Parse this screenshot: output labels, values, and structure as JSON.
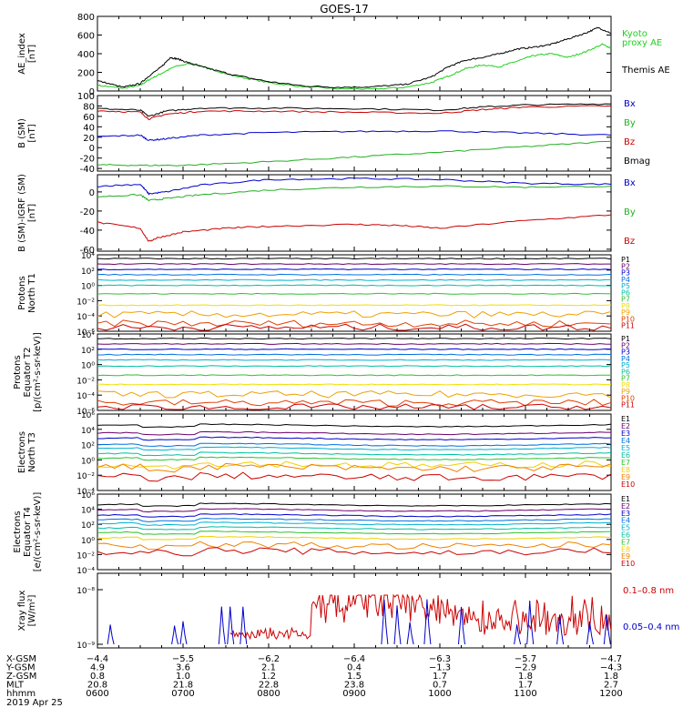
{
  "chart_data": {
    "type": "line",
    "title": "GOES-17",
    "x_range_hours": [
      6,
      12
    ],
    "panels": [
      {
        "id": "ae",
        "ylabel": "AE_index\n[nT]",
        "ylim": [
          0,
          800
        ],
        "yticks": [
          0,
          200,
          400,
          600,
          800
        ],
        "legend": [
          {
            "text": "Kyoto",
            "color": "#20d020"
          },
          {
            "text": "proxy AE",
            "color": "#20d020"
          },
          {
            "text": "Themis AE",
            "color": "#000000"
          }
        ],
        "series": [
          {
            "name": "Kyoto proxy AE",
            "color": "#20d020",
            "x": [
              6.0,
              6.3,
              6.5,
              6.6,
              6.75,
              6.9,
              7.1,
              7.3,
              7.6,
              8.0,
              8.4,
              8.8,
              9.2,
              9.6,
              9.9,
              10.1,
              10.3,
              10.5,
              10.7,
              10.9,
              11.1,
              11.3,
              11.5,
              11.7,
              11.9,
              12.0
            ],
            "y": [
              60,
              30,
              60,
              120,
              190,
              260,
              300,
              240,
              160,
              90,
              45,
              25,
              20,
              40,
              90,
              160,
              240,
              280,
              260,
              320,
              380,
              400,
              360,
              420,
              500,
              460
            ]
          },
          {
            "name": "Themis AE",
            "color": "#000000",
            "x": [
              6.0,
              6.3,
              6.5,
              6.6,
              6.75,
              6.85,
              6.95,
              7.1,
              7.3,
              7.6,
              8.0,
              8.4,
              8.8,
              9.2,
              9.6,
              9.9,
              10.1,
              10.3,
              10.5,
              10.7,
              10.9,
              11.1,
              11.3,
              11.5,
              11.7,
              11.85,
              12.0
            ],
            "y": [
              110,
              40,
              80,
              160,
              260,
              360,
              340,
              290,
              240,
              170,
              100,
              55,
              40,
              45,
              70,
              150,
              260,
              330,
              360,
              400,
              450,
              470,
              500,
              560,
              620,
              680,
              620
            ]
          }
        ]
      },
      {
        "id": "bsm",
        "ylabel": "B (SM)\n[nT]",
        "ylim": [
          -45,
          100
        ],
        "yticks": [
          -40,
          -20,
          0,
          20,
          40,
          60,
          80,
          100
        ],
        "legend": [
          {
            "text": "Bx",
            "color": "#0000cc"
          },
          {
            "text": "By",
            "color": "#20b020"
          },
          {
            "text": "Bz",
            "color": "#cc0000"
          },
          {
            "text": "Bmag",
            "color": "#000000"
          }
        ],
        "series": [
          {
            "name": "Bmag",
            "color": "#000000",
            "x": [
              6.0,
              6.5,
              6.6,
              6.8,
              7.2,
              8.0,
              9.0,
              10.0,
              10.5,
              11.0,
              12.0
            ],
            "y": [
              75,
              72,
              60,
              70,
              76,
              76,
              75,
              72,
              78,
              82,
              84
            ]
          },
          {
            "name": "Bz",
            "color": "#cc0000",
            "x": [
              6.0,
              6.5,
              6.6,
              6.8,
              7.2,
              8.0,
              9.0,
              10.0,
              10.5,
              11.0,
              12.0
            ],
            "y": [
              71,
              68,
              55,
              64,
              70,
              70,
              68,
              66,
              73,
              78,
              80
            ]
          },
          {
            "name": "Bx",
            "color": "#0000cc",
            "x": [
              6.0,
              6.5,
              6.6,
              6.8,
              7.2,
              8.0,
              9.0,
              10.0,
              11.0,
              12.0
            ],
            "y": [
              21,
              24,
              14,
              17,
              24,
              29,
              31,
              32,
              28,
              24
            ]
          },
          {
            "name": "By",
            "color": "#20b020",
            "x": [
              6.0,
              6.5,
              7.0,
              8.0,
              9.0,
              10.0,
              11.0,
              12.0
            ],
            "y": [
              -33,
              -34,
              -34,
              -27,
              -18,
              -9,
              2,
              12
            ]
          }
        ]
      },
      {
        "id": "bigrf",
        "ylabel": "B (SM)-IGRF (SM)\n[nT]",
        "ylim": [
          -62,
          18
        ],
        "yticks": [
          -60,
          -40,
          -20,
          0
        ],
        "legend": [
          {
            "text": "Bx",
            "color": "#0000cc"
          },
          {
            "text": "By",
            "color": "#20b020"
          },
          {
            "text": "Bz",
            "color": "#cc0000"
          }
        ],
        "series": [
          {
            "name": "Bx",
            "color": "#0000cc",
            "x": [
              6.0,
              6.5,
              6.6,
              6.8,
              7.2,
              8.0,
              9.0,
              10.0,
              11.0,
              12.0
            ],
            "y": [
              6,
              8,
              -2,
              0,
              7,
              13,
              14,
              13,
              9,
              8
            ]
          },
          {
            "name": "By",
            "color": "#20b020",
            "x": [
              6.0,
              6.5,
              6.6,
              6.8,
              7.2,
              8.0,
              9.0,
              10.0,
              11.0,
              12.0
            ],
            "y": [
              -5,
              -3,
              -9,
              -7,
              -3,
              2,
              5,
              6,
              5,
              6
            ]
          },
          {
            "name": "Bz",
            "color": "#cc0000",
            "x": [
              6.0,
              6.5,
              6.6,
              6.7,
              7.0,
              7.5,
              8.0,
              9.0,
              9.5,
              10.0,
              11.0,
              12.0
            ],
            "y": [
              -32,
              -38,
              -52,
              -48,
              -42,
              -38,
              -36,
              -34,
              -35,
              -38,
              -30,
              -24
            ]
          }
        ]
      },
      {
        "id": "pt1",
        "ylabel": "Protons\nNorth T1",
        "log": true,
        "ylim_exp": [
          -6,
          4
        ],
        "ytick_exps": [
          -6,
          -4,
          -2,
          0,
          2,
          4
        ],
        "levels": [
          {
            "name": "P1",
            "color": "#000000",
            "exp": 3.5
          },
          {
            "name": "P2",
            "color": "#6a006a",
            "exp": 2.8
          },
          {
            "name": "P3",
            "color": "#0000cc",
            "exp": 2.1
          },
          {
            "name": "P4",
            "color": "#0070e0",
            "exp": 1.4
          },
          {
            "name": "P5",
            "color": "#00b0d0",
            "exp": 0.7
          },
          {
            "name": "P6",
            "color": "#00c0a0",
            "exp": 0.0
          },
          {
            "name": "P7",
            "color": "#30c030",
            "exp": -1.1
          },
          {
            "name": "P8",
            "color": "#f0e000",
            "exp": -2.6
          },
          {
            "name": "P9",
            "color": "#f0a000",
            "exp": -3.8
          },
          {
            "name": "P10",
            "color": "#e04000",
            "exp": -5.0
          },
          {
            "name": "P11",
            "color": "#cc0000",
            "exp": -5.5
          }
        ]
      },
      {
        "id": "pt2",
        "ylabel": "Protons\nEquator T2\n[p/(cm²-s-sr-keV)]",
        "log": true,
        "ylim_exp": [
          -6,
          4
        ],
        "ytick_exps": [
          -6,
          -4,
          -2,
          0,
          2,
          4
        ],
        "levels": [
          {
            "name": "P1",
            "color": "#000000",
            "exp": 3.4
          },
          {
            "name": "P2",
            "color": "#6a006a",
            "exp": 2.7
          },
          {
            "name": "P3",
            "color": "#0000cc",
            "exp": 2.0
          },
          {
            "name": "P4",
            "color": "#0070e0",
            "exp": 1.3
          },
          {
            "name": "P5",
            "color": "#00b0d0",
            "exp": 0.6
          },
          {
            "name": "P6",
            "color": "#00c0a0",
            "exp": -0.2
          },
          {
            "name": "P7",
            "color": "#30c030",
            "exp": -1.4
          },
          {
            "name": "P8",
            "color": "#f0e000",
            "exp": -2.6
          },
          {
            "name": "P9",
            "color": "#f0a000",
            "exp": -3.9
          },
          {
            "name": "P10",
            "color": "#e04000",
            "exp": -5.0
          },
          {
            "name": "P11",
            "color": "#cc0000",
            "exp": -5.6
          }
        ]
      },
      {
        "id": "et3",
        "ylabel": "Electrons\nNorth T3",
        "log": true,
        "ylim_exp": [
          -4,
          6
        ],
        "ytick_exps": [
          -4,
          -2,
          0,
          2,
          4,
          6
        ],
        "levels": [
          {
            "name": "E1",
            "color": "#000000",
            "exp": 4.5
          },
          {
            "name": "E2",
            "color": "#6a006a",
            "exp": 3.5
          },
          {
            "name": "E3",
            "color": "#0000cc",
            "exp": 2.8
          },
          {
            "name": "E4",
            "color": "#0070e0",
            "exp": 2.0
          },
          {
            "name": "E5",
            "color": "#00b0d0",
            "exp": 1.5
          },
          {
            "name": "E6",
            "color": "#00c0a0",
            "exp": 0.8
          },
          {
            "name": "E7",
            "color": "#30c030",
            "exp": 0.2
          },
          {
            "name": "E8",
            "color": "#f0d000",
            "exp": -0.6
          },
          {
            "name": "E9",
            "color": "#f08000",
            "exp": -1.0
          },
          {
            "name": "E10",
            "color": "#cc0000",
            "exp": -2.2
          }
        ]
      },
      {
        "id": "et4",
        "ylabel": "Electrons\nEquator T4\n[e/(cm²-s-sr-keV)]",
        "log": true,
        "ylim_exp": [
          -4,
          6
        ],
        "ytick_exps": [
          -4,
          -2,
          0,
          2,
          4,
          6
        ],
        "levels": [
          {
            "name": "E1",
            "color": "#000000",
            "exp": 4.6
          },
          {
            "name": "E2",
            "color": "#6a006a",
            "exp": 3.9
          },
          {
            "name": "E3",
            "color": "#0000cc",
            "exp": 3.2
          },
          {
            "name": "E4",
            "color": "#0070e0",
            "exp": 2.6
          },
          {
            "name": "E5",
            "color": "#00b0d0",
            "exp": 2.1
          },
          {
            "name": "E6",
            "color": "#00c0a0",
            "exp": 1.5
          },
          {
            "name": "E7",
            "color": "#30c030",
            "exp": 0.9
          },
          {
            "name": "E8",
            "color": "#f0d000",
            "exp": 0.2
          },
          {
            "name": "E9",
            "color": "#f08000",
            "exp": -0.8
          },
          {
            "name": "E10",
            "color": "#cc0000",
            "exp": -1.6
          }
        ]
      },
      {
        "id": "xray",
        "ylabel": "Xray flux\n[W/m²]",
        "log": true,
        "ytick_labels": [
          "10⁻⁸",
          "10⁻⁹"
        ],
        "legend": [
          {
            "text": "0.1–0.8 nm",
            "color": "#cc0000"
          },
          {
            "text": "0.05–0.4 nm",
            "color": "#0000cc"
          }
        ]
      }
    ],
    "x_ticks": [
      {
        "x-gsm": "−4.4",
        "y-gsm": "4.9",
        "z-gsm": "0.8",
        "mlt": "20.8",
        "hhmm": "0600"
      },
      {
        "x-gsm": "−5.5",
        "y-gsm": "3.6",
        "z-gsm": "1.0",
        "mlt": "21.8",
        "hhmm": "0700"
      },
      {
        "x-gsm": "−6.2",
        "y-gsm": "2.1",
        "z-gsm": "1.2",
        "mlt": "22.8",
        "hhmm": "0800"
      },
      {
        "x-gsm": "−6.4",
        "y-gsm": "0.4",
        "z-gsm": "1.5",
        "mlt": "23.8",
        "hhmm": "0900"
      },
      {
        "x-gsm": "−6.3",
        "y-gsm": "−1.3",
        "z-gsm": "1.7",
        "mlt": "0.7",
        "hhmm": "1000"
      },
      {
        "x-gsm": "−5.7",
        "y-gsm": "−2.9",
        "z-gsm": "1.8",
        "mlt": "1.7",
        "hhmm": "1100"
      },
      {
        "x-gsm": "−4.7",
        "y-gsm": "−4.3",
        "z-gsm": "1.8",
        "mlt": "2.7",
        "hhmm": "1200"
      }
    ],
    "footer_labels": [
      "X-GSM",
      "Y-GSM",
      "Z-GSM",
      "MLT",
      "hhmm"
    ],
    "date": "2019 Apr 25"
  }
}
